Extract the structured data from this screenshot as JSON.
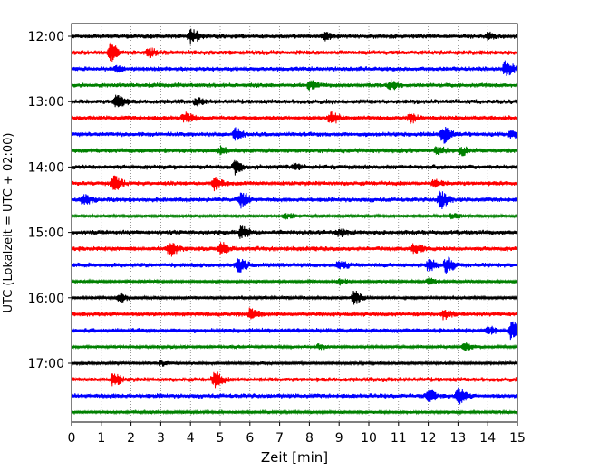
{
  "chart_data": {
    "type": "line",
    "subtype": "helicorder",
    "xlabel": "Zeit  [min]",
    "ylabel": "UTC (Lokalzeit = UTC + 02:00)",
    "xlim": [
      0,
      15
    ],
    "x_ticks": [
      "0",
      "1",
      "2",
      "3",
      "4",
      "5",
      "6",
      "7",
      "8",
      "9",
      "10",
      "11",
      "12",
      "13",
      "14",
      "15"
    ],
    "grid": "vertical dotted lines at each minute",
    "y_tick_labels": [
      "12:00",
      "13:00",
      "14:00",
      "15:00",
      "16:00",
      "17:00"
    ],
    "trace_interval_minutes": 15,
    "color_cycle": [
      "#000000",
      "#ff0000",
      "#0000ff",
      "#008000"
    ],
    "rows": [
      {
        "start": "12:00",
        "color": "#000000",
        "amplitude": 3,
        "events": [
          {
            "t": 4.0,
            "amp": 8
          },
          {
            "t": 8.5,
            "amp": 4
          },
          {
            "t": 14.0,
            "amp": 3
          }
        ]
      },
      {
        "start": "12:15",
        "color": "#ff0000",
        "amplitude": 3,
        "events": [
          {
            "t": 1.3,
            "amp": 9
          },
          {
            "t": 2.6,
            "amp": 4
          }
        ]
      },
      {
        "start": "12:30",
        "color": "#0000ff",
        "amplitude": 3,
        "events": [
          {
            "t": 14.6,
            "amp": 8
          },
          {
            "t": 1.5,
            "amp": 3
          }
        ]
      },
      {
        "start": "12:45",
        "color": "#008000",
        "amplitude": 3,
        "events": [
          {
            "t": 8.0,
            "amp": 4
          },
          {
            "t": 10.7,
            "amp": 4
          }
        ]
      },
      {
        "start": "13:00",
        "color": "#000000",
        "amplitude": 3,
        "events": [
          {
            "t": 1.5,
            "amp": 7
          },
          {
            "t": 4.2,
            "amp": 3
          }
        ]
      },
      {
        "start": "13:15",
        "color": "#ff0000",
        "amplitude": 3,
        "events": [
          {
            "t": 3.8,
            "amp": 5
          },
          {
            "t": 8.7,
            "amp": 7
          },
          {
            "t": 11.4,
            "amp": 4
          }
        ]
      },
      {
        "start": "13:30",
        "color": "#0000ff",
        "amplitude": 3,
        "events": [
          {
            "t": 5.5,
            "amp": 6
          },
          {
            "t": 12.5,
            "amp": 9
          },
          {
            "t": 14.8,
            "amp": 4
          }
        ]
      },
      {
        "start": "13:45",
        "color": "#008000",
        "amplitude": 3,
        "events": [
          {
            "t": 5.0,
            "amp": 4
          },
          {
            "t": 12.3,
            "amp": 4
          },
          {
            "t": 13.1,
            "amp": 4
          }
        ]
      },
      {
        "start": "14:00",
        "color": "#000000",
        "amplitude": 3,
        "events": [
          {
            "t": 5.5,
            "amp": 7
          },
          {
            "t": 7.5,
            "amp": 3
          }
        ]
      },
      {
        "start": "14:15",
        "color": "#ff0000",
        "amplitude": 3,
        "events": [
          {
            "t": 1.4,
            "amp": 8
          },
          {
            "t": 4.8,
            "amp": 6
          },
          {
            "t": 12.2,
            "amp": 3
          }
        ]
      },
      {
        "start": "14:30",
        "color": "#0000ff",
        "amplitude": 3,
        "events": [
          {
            "t": 0.4,
            "amp": 5
          },
          {
            "t": 5.7,
            "amp": 7
          },
          {
            "t": 12.4,
            "amp": 9
          }
        ]
      },
      {
        "start": "14:45",
        "color": "#008000",
        "amplitude": 2,
        "events": [
          {
            "t": 7.2,
            "amp": 3
          },
          {
            "t": 12.8,
            "amp": 3
          }
        ]
      },
      {
        "start": "15:00",
        "color": "#000000",
        "amplitude": 3,
        "events": [
          {
            "t": 5.7,
            "amp": 7
          },
          {
            "t": 9.0,
            "amp": 3
          }
        ]
      },
      {
        "start": "15:15",
        "color": "#ff0000",
        "amplitude": 3,
        "events": [
          {
            "t": 3.3,
            "amp": 7
          },
          {
            "t": 5.0,
            "amp": 6
          },
          {
            "t": 11.5,
            "amp": 5
          }
        ]
      },
      {
        "start": "15:30",
        "color": "#0000ff",
        "amplitude": 3,
        "events": [
          {
            "t": 5.6,
            "amp": 7
          },
          {
            "t": 9.0,
            "amp": 4
          },
          {
            "t": 12.0,
            "amp": 6
          },
          {
            "t": 12.6,
            "amp": 8
          }
        ]
      },
      {
        "start": "15:45",
        "color": "#008000",
        "amplitude": 2,
        "events": [
          {
            "t": 9.0,
            "amp": 3
          },
          {
            "t": 12.0,
            "amp": 3
          }
        ]
      },
      {
        "start": "16:00",
        "color": "#000000",
        "amplitude": 2,
        "events": [
          {
            "t": 1.6,
            "amp": 5
          },
          {
            "t": 9.5,
            "amp": 7
          }
        ]
      },
      {
        "start": "16:15",
        "color": "#ff0000",
        "amplitude": 3,
        "events": [
          {
            "t": 6.0,
            "amp": 6
          },
          {
            "t": 12.5,
            "amp": 4
          }
        ]
      },
      {
        "start": "16:30",
        "color": "#0000ff",
        "amplitude": 3,
        "events": [
          {
            "t": 14.0,
            "amp": 4
          },
          {
            "t": 14.8,
            "amp": 9
          }
        ]
      },
      {
        "start": "16:45",
        "color": "#008000",
        "amplitude": 2,
        "events": [
          {
            "t": 8.3,
            "amp": 3
          },
          {
            "t": 13.2,
            "amp": 4
          }
        ]
      },
      {
        "start": "17:00",
        "color": "#000000",
        "amplitude": 2,
        "events": [
          {
            "t": 3.0,
            "amp": 2
          }
        ]
      },
      {
        "start": "17:15",
        "color": "#ff0000",
        "amplitude": 3,
        "events": [
          {
            "t": 1.4,
            "amp": 7
          },
          {
            "t": 4.8,
            "amp": 8
          }
        ]
      },
      {
        "start": "17:30",
        "color": "#0000ff",
        "amplitude": 3,
        "events": [
          {
            "t": 12.0,
            "amp": 6
          },
          {
            "t": 13.0,
            "amp": 8
          }
        ]
      },
      {
        "start": "17:45",
        "color": "#008000",
        "amplitude": 2,
        "events": []
      }
    ]
  }
}
